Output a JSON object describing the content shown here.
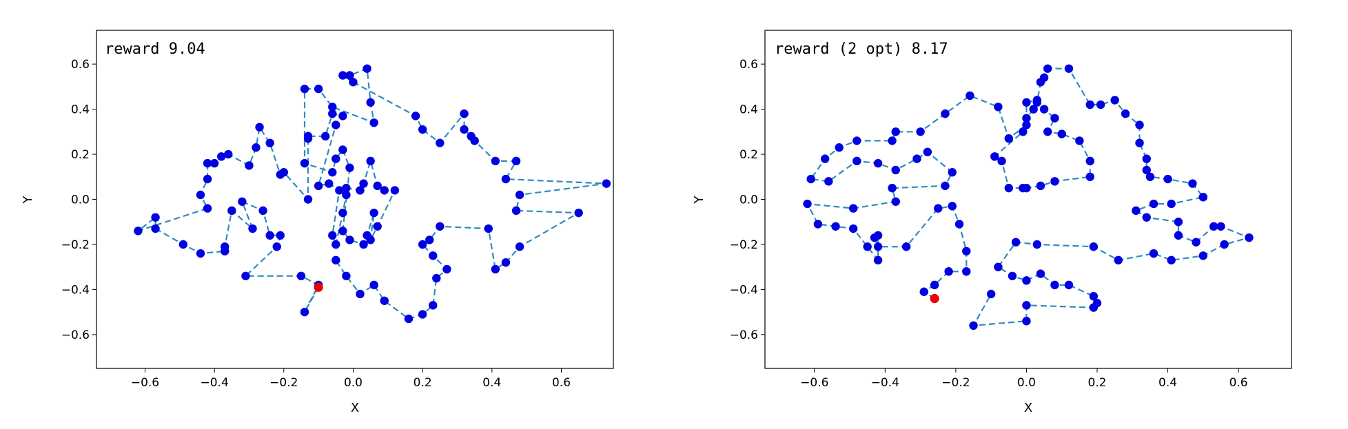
{
  "colors": {
    "node": "#0000e0",
    "start": "#ee0000",
    "tour": "#2e8bc0"
  },
  "chart_data": [
    {
      "type": "scatter",
      "title": "",
      "annotation": "reward 9.04",
      "xlabel": "X",
      "ylabel": "Y",
      "xlim": [
        -0.74,
        0.75
      ],
      "ylim": [
        -0.75,
        0.75
      ],
      "xticks": [
        "−0.6",
        "−0.4",
        "−0.2",
        "0.0",
        "0.2",
        "0.4",
        "0.6"
      ],
      "xtick_values": [
        -0.6,
        -0.4,
        -0.2,
        0.0,
        0.2,
        0.4,
        0.6
      ],
      "yticks": [
        "0.6",
        "0.4",
        "0.2",
        "0.0",
        "−0.2",
        "−0.4",
        "−0.6"
      ],
      "ytick_values": [
        0.6,
        0.4,
        0.2,
        0.0,
        -0.2,
        -0.4,
        -0.6
      ],
      "start": [
        -0.1,
        -0.39
      ],
      "tour": [
        [
          -0.1,
          -0.39
        ],
        [
          -0.14,
          -0.5
        ],
        [
          -0.1,
          -0.38
        ],
        [
          -0.15,
          -0.34
        ],
        [
          -0.31,
          -0.34
        ],
        [
          -0.22,
          -0.21
        ],
        [
          -0.21,
          -0.16
        ],
        [
          -0.24,
          -0.16
        ],
        [
          -0.26,
          -0.05
        ],
        [
          -0.32,
          -0.01
        ],
        [
          -0.29,
          -0.13
        ],
        [
          -0.35,
          -0.05
        ],
        [
          -0.37,
          -0.21
        ],
        [
          -0.37,
          -0.23
        ],
        [
          -0.44,
          -0.24
        ],
        [
          -0.49,
          -0.2
        ],
        [
          -0.57,
          -0.13
        ],
        [
          -0.57,
          -0.08
        ],
        [
          -0.62,
          -0.14
        ],
        [
          -0.42,
          -0.04
        ],
        [
          -0.44,
          0.02
        ],
        [
          -0.42,
          0.09
        ],
        [
          -0.42,
          0.16
        ],
        [
          -0.4,
          0.16
        ],
        [
          -0.38,
          0.19
        ],
        [
          -0.36,
          0.2
        ],
        [
          -0.3,
          0.15
        ],
        [
          -0.28,
          0.23
        ],
        [
          -0.27,
          0.32
        ],
        [
          -0.24,
          0.25
        ],
        [
          -0.21,
          0.11
        ],
        [
          -0.2,
          0.12
        ],
        [
          -0.13,
          0.0
        ],
        [
          -0.13,
          0.27
        ],
        [
          -0.13,
          0.28
        ],
        [
          -0.08,
          0.28
        ],
        [
          -0.06,
          0.38
        ],
        [
          -0.03,
          0.37
        ],
        [
          -0.05,
          0.33
        ],
        [
          -0.1,
          0.06
        ],
        [
          -0.07,
          0.07
        ],
        [
          -0.04,
          0.04
        ],
        [
          -0.06,
          -0.16
        ],
        [
          -0.05,
          -0.2
        ],
        [
          -0.03,
          -0.06
        ],
        [
          -0.02,
          0.02
        ],
        [
          -0.02,
          0.05
        ],
        [
          0.02,
          0.04
        ],
        [
          0.03,
          0.07
        ],
        [
          0.05,
          0.17
        ],
        [
          0.07,
          0.06
        ],
        [
          0.09,
          0.04
        ],
        [
          0.12,
          0.04
        ],
        [
          0.07,
          -0.12
        ],
        [
          0.05,
          -0.18
        ],
        [
          0.06,
          -0.06
        ],
        [
          0.04,
          -0.16
        ],
        [
          0.03,
          -0.2
        ],
        [
          -0.01,
          -0.18
        ],
        [
          -0.03,
          -0.14
        ],
        [
          -0.01,
          0.14
        ],
        [
          -0.03,
          0.22
        ],
        [
          -0.05,
          0.18
        ],
        [
          -0.06,
          0.12
        ],
        [
          -0.14,
          0.16
        ],
        [
          -0.14,
          0.49
        ],
        [
          -0.1,
          0.49
        ],
        [
          -0.06,
          0.41
        ],
        [
          0.06,
          0.34
        ],
        [
          0.05,
          0.43
        ],
        [
          0.04,
          0.58
        ],
        [
          -0.01,
          0.55
        ],
        [
          -0.03,
          0.55
        ],
        [
          0.0,
          0.52
        ],
        [
          0.18,
          0.37
        ],
        [
          0.2,
          0.31
        ],
        [
          0.25,
          0.25
        ],
        [
          0.32,
          0.38
        ],
        [
          0.32,
          0.31
        ],
        [
          0.34,
          0.28
        ],
        [
          0.35,
          0.26
        ],
        [
          0.41,
          0.17
        ],
        [
          0.47,
          0.17
        ],
        [
          0.44,
          0.09
        ],
        [
          0.73,
          0.07
        ],
        [
          0.48,
          0.02
        ],
        [
          0.47,
          -0.05
        ],
        [
          0.65,
          -0.06
        ],
        [
          0.48,
          -0.21
        ],
        [
          0.44,
          -0.28
        ],
        [
          0.41,
          -0.31
        ],
        [
          0.39,
          -0.13
        ],
        [
          0.25,
          -0.12
        ],
        [
          0.22,
          -0.18
        ],
        [
          0.2,
          -0.2
        ],
        [
          0.23,
          -0.25
        ],
        [
          0.27,
          -0.31
        ],
        [
          0.24,
          -0.35
        ],
        [
          0.23,
          -0.47
        ],
        [
          0.2,
          -0.51
        ],
        [
          0.16,
          -0.53
        ],
        [
          0.09,
          -0.45
        ],
        [
          0.06,
          -0.38
        ],
        [
          0.02,
          -0.42
        ],
        [
          -0.02,
          -0.34
        ],
        [
          -0.05,
          -0.27
        ]
      ]
    },
    {
      "type": "scatter",
      "title": "",
      "annotation": "reward (2 opt) 8.17",
      "xlabel": "X",
      "ylabel": "Y",
      "xlim": [
        -0.74,
        0.75
      ],
      "ylim": [
        -0.75,
        0.75
      ],
      "xticks": [
        "−0.6",
        "−0.4",
        "−0.2",
        "0.0",
        "0.2",
        "0.4",
        "0.6"
      ],
      "xtick_values": [
        -0.6,
        -0.4,
        -0.2,
        0.0,
        0.2,
        0.4,
        0.6
      ],
      "yticks": [
        "0.6",
        "0.4",
        "0.2",
        "0.0",
        "−0.2",
        "−0.4",
        "−0.6"
      ],
      "ytick_values": [
        0.6,
        0.4,
        0.2,
        0.0,
        -0.2,
        -0.4,
        -0.6
      ],
      "start": [
        -0.26,
        -0.44
      ],
      "tour": [
        [
          -0.26,
          -0.44
        ],
        [
          -0.29,
          -0.41
        ],
        [
          -0.26,
          -0.38
        ],
        [
          -0.22,
          -0.32
        ],
        [
          -0.17,
          -0.32
        ],
        [
          -0.17,
          -0.23
        ],
        [
          -0.19,
          -0.11
        ],
        [
          -0.21,
          -0.03
        ],
        [
          -0.25,
          -0.04
        ],
        [
          -0.34,
          -0.21
        ],
        [
          -0.42,
          -0.21
        ],
        [
          -0.43,
          -0.17
        ],
        [
          -0.42,
          -0.16
        ],
        [
          -0.42,
          -0.27
        ],
        [
          -0.45,
          -0.21
        ],
        [
          -0.49,
          -0.13
        ],
        [
          -0.54,
          -0.12
        ],
        [
          -0.59,
          -0.11
        ],
        [
          -0.62,
          -0.02
        ],
        [
          -0.49,
          -0.04
        ],
        [
          -0.37,
          -0.01
        ],
        [
          -0.38,
          0.05
        ],
        [
          -0.23,
          0.06
        ],
        [
          -0.21,
          0.12
        ],
        [
          -0.28,
          0.21
        ],
        [
          -0.31,
          0.18
        ],
        [
          -0.37,
          0.13
        ],
        [
          -0.42,
          0.16
        ],
        [
          -0.48,
          0.17
        ],
        [
          -0.56,
          0.08
        ],
        [
          -0.61,
          0.09
        ],
        [
          -0.57,
          0.18
        ],
        [
          -0.53,
          0.23
        ],
        [
          -0.48,
          0.26
        ],
        [
          -0.38,
          0.26
        ],
        [
          -0.37,
          0.3
        ],
        [
          -0.3,
          0.3
        ],
        [
          -0.23,
          0.38
        ],
        [
          -0.16,
          0.46
        ],
        [
          -0.08,
          0.41
        ],
        [
          -0.05,
          0.27
        ],
        [
          0.0,
          0.33
        ],
        [
          0.0,
          0.43
        ],
        [
          0.03,
          0.44
        ],
        [
          0.05,
          0.4
        ],
        [
          0.08,
          0.36
        ],
        [
          0.06,
          0.3
        ],
        [
          0.1,
          0.29
        ],
        [
          0.15,
          0.26
        ],
        [
          0.18,
          0.17
        ],
        [
          0.18,
          0.1
        ],
        [
          0.08,
          0.08
        ],
        [
          0.04,
          0.06
        ],
        [
          0.0,
          0.05
        ],
        [
          -0.01,
          0.05
        ],
        [
          -0.05,
          0.05
        ],
        [
          -0.07,
          0.17
        ],
        [
          -0.09,
          0.19
        ],
        [
          -0.01,
          0.3
        ],
        [
          0.0,
          0.36
        ],
        [
          0.02,
          0.4
        ],
        [
          0.03,
          0.43
        ],
        [
          0.04,
          0.52
        ],
        [
          0.05,
          0.54
        ],
        [
          0.06,
          0.58
        ],
        [
          0.12,
          0.58
        ],
        [
          0.18,
          0.42
        ],
        [
          0.21,
          0.42
        ],
        [
          0.25,
          0.44
        ],
        [
          0.28,
          0.38
        ],
        [
          0.32,
          0.33
        ],
        [
          0.32,
          0.25
        ],
        [
          0.34,
          0.18
        ],
        [
          0.34,
          0.13
        ],
        [
          0.35,
          0.1
        ],
        [
          0.4,
          0.09
        ],
        [
          0.47,
          0.07
        ],
        [
          0.5,
          0.01
        ],
        [
          0.5,
          0.01
        ],
        [
          0.41,
          -0.02
        ],
        [
          0.36,
          -0.02
        ],
        [
          0.31,
          -0.05
        ],
        [
          0.34,
          -0.08
        ],
        [
          0.43,
          -0.1
        ],
        [
          0.43,
          -0.16
        ],
        [
          0.48,
          -0.19
        ],
        [
          0.53,
          -0.12
        ],
        [
          0.55,
          -0.12
        ],
        [
          0.63,
          -0.17
        ],
        [
          0.56,
          -0.2
        ],
        [
          0.5,
          -0.25
        ],
        [
          0.41,
          -0.27
        ],
        [
          0.36,
          -0.24
        ],
        [
          0.26,
          -0.27
        ],
        [
          0.19,
          -0.21
        ],
        [
          0.03,
          -0.2
        ],
        [
          -0.03,
          -0.19
        ],
        [
          -0.08,
          -0.3
        ],
        [
          -0.04,
          -0.34
        ],
        [
          0.0,
          -0.36
        ],
        [
          0.04,
          -0.33
        ],
        [
          0.08,
          -0.38
        ],
        [
          0.12,
          -0.38
        ],
        [
          0.19,
          -0.43
        ],
        [
          0.2,
          -0.46
        ],
        [
          0.19,
          -0.48
        ],
        [
          0.0,
          -0.47
        ],
        [
          0.0,
          -0.54
        ],
        [
          -0.15,
          -0.56
        ],
        [
          -0.1,
          -0.42
        ]
      ]
    }
  ]
}
